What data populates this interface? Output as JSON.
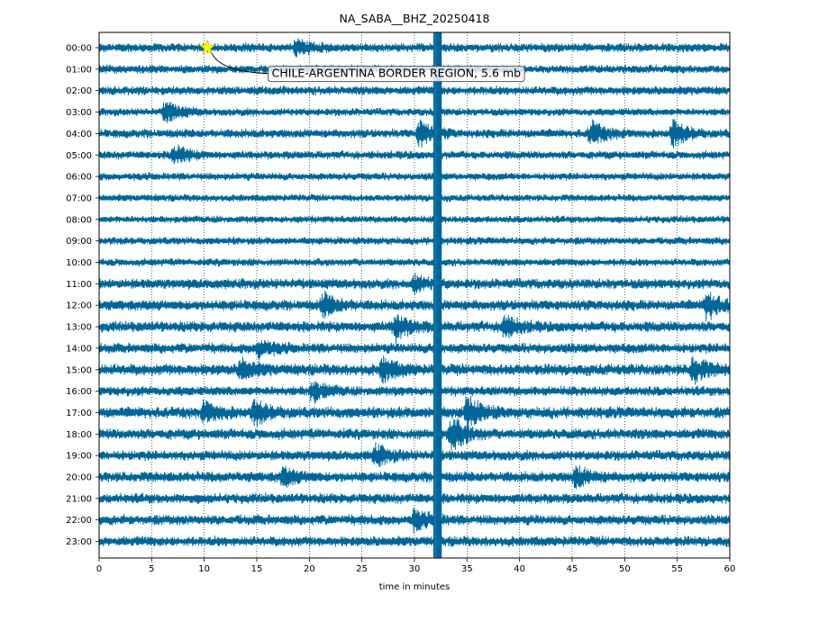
{
  "chart_data": {
    "type": "line",
    "title": "NA_SABA__BHZ_20250418",
    "xlabel": "time in minutes",
    "ylabel": "",
    "xlim": [
      0,
      60
    ],
    "x_ticks": [
      0,
      5,
      10,
      15,
      20,
      25,
      30,
      35,
      40,
      45,
      50,
      55,
      60
    ],
    "grid": {
      "x": "dotted vertical at each 5 min",
      "y": false
    },
    "trace_color": "#006699",
    "rows": [
      "00:00",
      "01:00",
      "02:00",
      "03:00",
      "04:00",
      "05:00",
      "06:00",
      "07:00",
      "08:00",
      "09:00",
      "10:00",
      "11:00",
      "12:00",
      "13:00",
      "14:00",
      "15:00",
      "16:00",
      "17:00",
      "18:00",
      "19:00",
      "20:00",
      "21:00",
      "22:00",
      "23:00"
    ],
    "row_noise_amplitude": [
      0.35,
      0.33,
      0.35,
      0.3,
      0.35,
      0.32,
      0.3,
      0.28,
      0.28,
      0.3,
      0.3,
      0.4,
      0.42,
      0.42,
      0.4,
      0.45,
      0.38,
      0.45,
      0.42,
      0.4,
      0.42,
      0.4,
      0.4,
      0.4
    ],
    "bursts": [
      {
        "row": 0,
        "minute": 18.7,
        "amp": 0.7
      },
      {
        "row": 3,
        "minute": 6.3,
        "amp": 0.9
      },
      {
        "row": 4,
        "minute": 30.5,
        "amp": 1.1
      },
      {
        "row": 4,
        "minute": 46.8,
        "amp": 1.0
      },
      {
        "row": 4,
        "minute": 54.6,
        "amp": 1.0
      },
      {
        "row": 5,
        "minute": 7.1,
        "amp": 0.8
      },
      {
        "row": 11,
        "minute": 30.0,
        "amp": 0.6
      },
      {
        "row": 12,
        "minute": 21.3,
        "amp": 0.9
      },
      {
        "row": 12,
        "minute": 57.8,
        "amp": 1.1
      },
      {
        "row": 13,
        "minute": 28.2,
        "amp": 1.0
      },
      {
        "row": 13,
        "minute": 38.5,
        "amp": 0.9
      },
      {
        "row": 14,
        "minute": 15.2,
        "amp": 0.7
      },
      {
        "row": 15,
        "minute": 13.5,
        "amp": 0.8
      },
      {
        "row": 15,
        "minute": 27.0,
        "amp": 0.9
      },
      {
        "row": 15,
        "minute": 56.5,
        "amp": 1.0
      },
      {
        "row": 16,
        "minute": 20.3,
        "amp": 0.8
      },
      {
        "row": 17,
        "minute": 10.0,
        "amp": 0.8
      },
      {
        "row": 17,
        "minute": 14.8,
        "amp": 0.9
      },
      {
        "row": 17,
        "minute": 35.0,
        "amp": 1.3
      },
      {
        "row": 18,
        "minute": 33.5,
        "amp": 1.4
      },
      {
        "row": 19,
        "minute": 26.3,
        "amp": 0.8
      },
      {
        "row": 20,
        "minute": 17.5,
        "amp": 0.7
      },
      {
        "row": 20,
        "minute": 45.3,
        "amp": 0.8
      },
      {
        "row": 22,
        "minute": 30.0,
        "amp": 0.8
      }
    ],
    "saturated_band": {
      "minute_start": 31.8,
      "minute_end": 32.6,
      "row_start": 0,
      "row_end": 23
    },
    "event_marker": {
      "row": 0,
      "minute": 10.3,
      "color": "#ffff00"
    },
    "annotation": {
      "text": "CHILE-ARGENTINA BORDER REGION, 5.6 mb",
      "row": 1.2,
      "minute": 16.0
    }
  }
}
